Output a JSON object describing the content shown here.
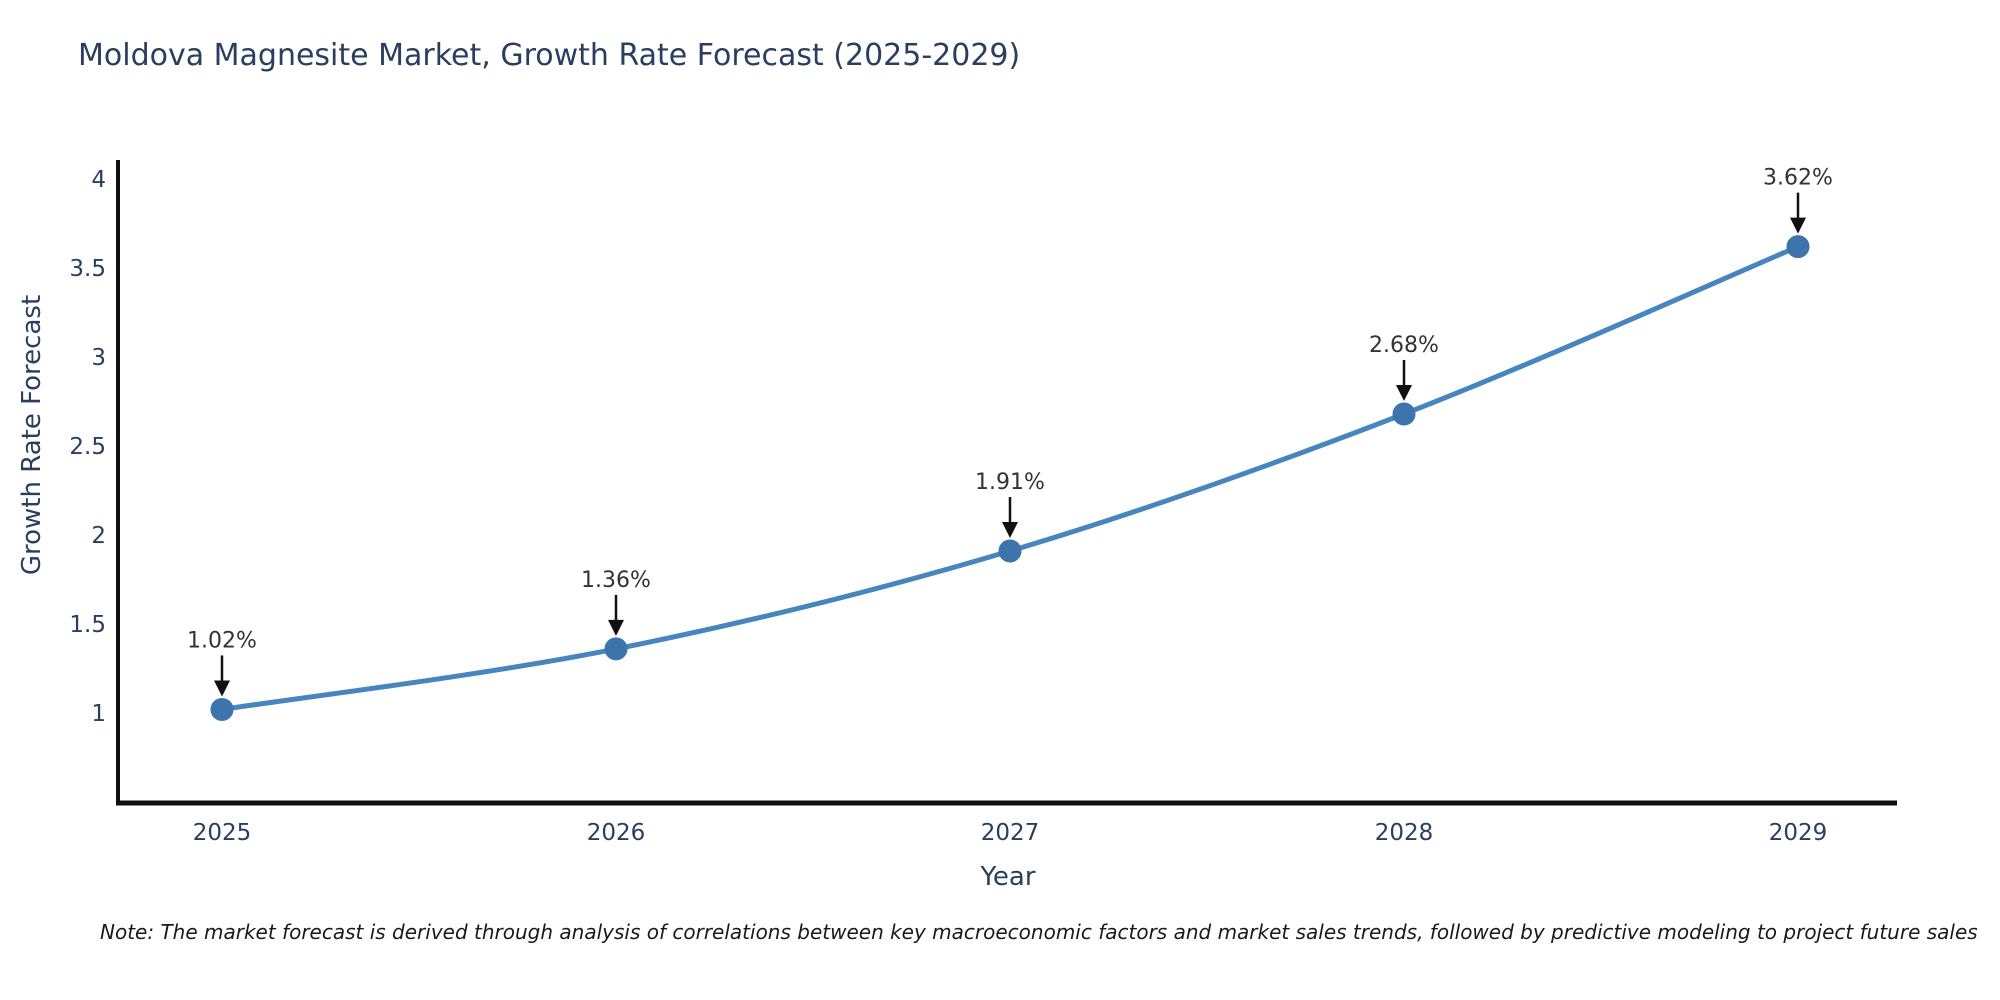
{
  "title": "Moldova Magnesite Market, Growth Rate Forecast (2025-2029)",
  "note": "Note: The market forecast is derived through analysis of correlations between key macroeconomic factors and market sales trends, followed by predictive modeling to project future sales",
  "colors": {
    "line": "#4685bd",
    "marker": "#3c74ab",
    "axis": "#111111",
    "title_text": "#2a3f5f",
    "tick_text": "#2a3f5f",
    "annotation_text": "#333333",
    "arrow": "#111111",
    "background": "#ffffff"
  },
  "chart_data": {
    "type": "line",
    "title": "Moldova Magnesite Market, Growth Rate Forecast (2025-2029)",
    "xlabel": "Year",
    "ylabel": "Growth Rate Forecast",
    "x": [
      2025,
      2026,
      2027,
      2028,
      2029
    ],
    "values": [
      1.02,
      1.36,
      1.91,
      2.68,
      3.62
    ],
    "point_labels": [
      "1.02%",
      "1.36%",
      "1.91%",
      "2.68%",
      "3.62%"
    ],
    "series_name": "Growth Rate Forecast",
    "yticks": [
      1,
      1.5,
      2,
      2.5,
      3,
      3.5,
      4
    ],
    "ylim": [
      0.5,
      4.3
    ],
    "xlim": [
      2024.73,
      2029.25
    ],
    "grid": false,
    "legend": false,
    "line_shape": "spline",
    "marker": "circle",
    "annotation_arrow": "down"
  }
}
